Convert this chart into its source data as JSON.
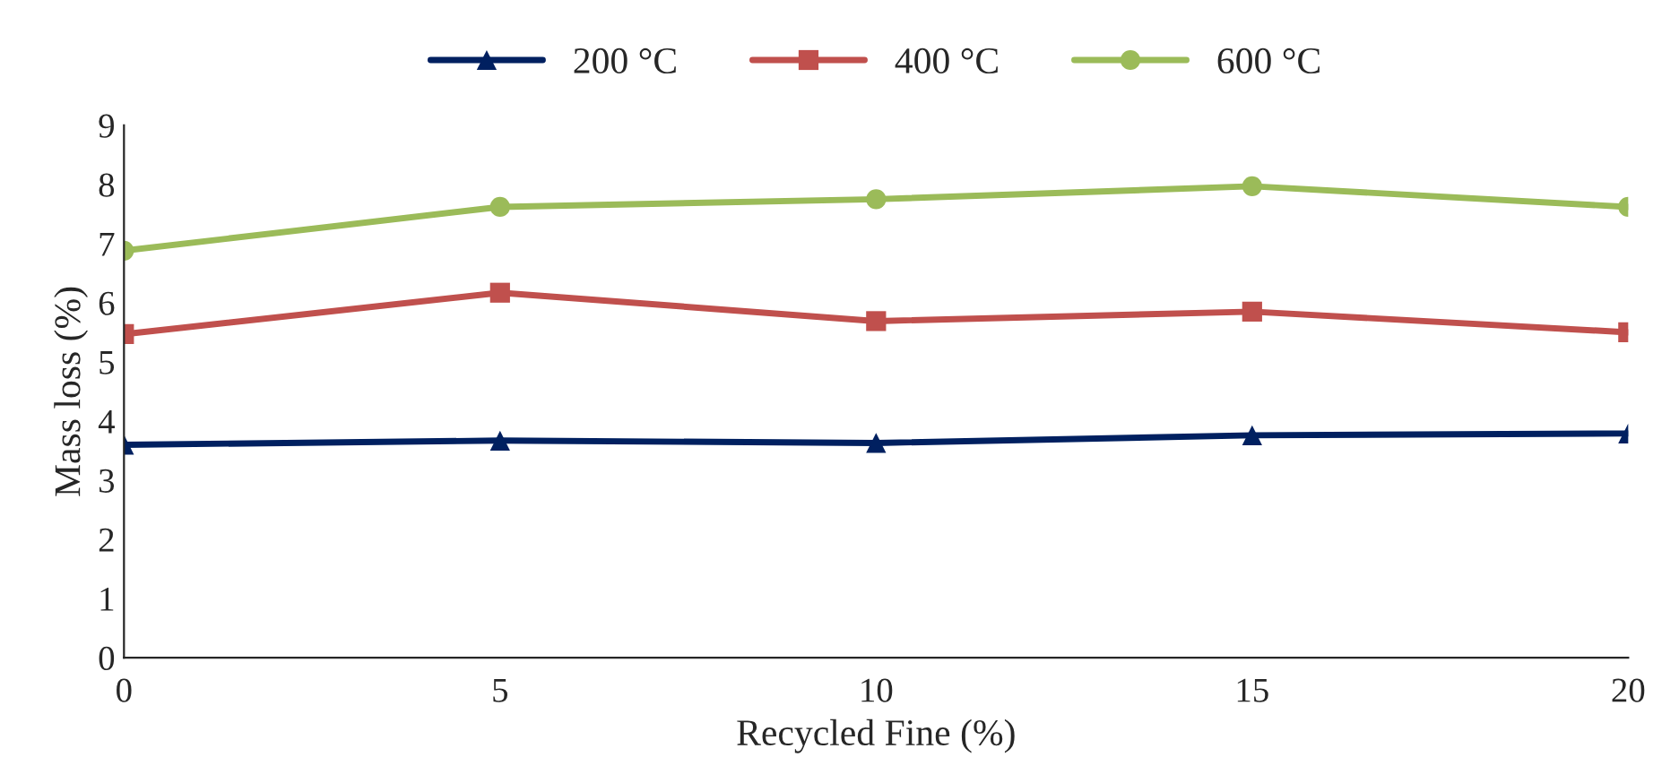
{
  "chart_data": {
    "type": "line",
    "xlabel": "Recycled Fine (%)",
    "ylabel": "Mass loss (%)",
    "x": [
      0,
      5,
      10,
      15,
      20
    ],
    "series": [
      {
        "name": "200 °C",
        "color": "#002060",
        "marker": "triangle",
        "values": [
          3.6,
          3.67,
          3.63,
          3.76,
          3.79
        ]
      },
      {
        "name": "400 °C",
        "color": "#c0504d",
        "marker": "square",
        "values": [
          5.47,
          6.17,
          5.69,
          5.85,
          5.5
        ]
      },
      {
        "name": "600 °C",
        "color": "#9bbb59",
        "marker": "circle",
        "values": [
          6.88,
          7.62,
          7.75,
          7.97,
          7.62
        ]
      }
    ],
    "xlim": [
      0,
      20
    ],
    "xticks": [
      0,
      5,
      10,
      15,
      20
    ],
    "ylim": [
      0,
      9
    ],
    "yticks": [
      0,
      1,
      2,
      3,
      4,
      5,
      6,
      7,
      8,
      9
    ],
    "grid": false,
    "legend": "top",
    "line_style": "solid"
  }
}
